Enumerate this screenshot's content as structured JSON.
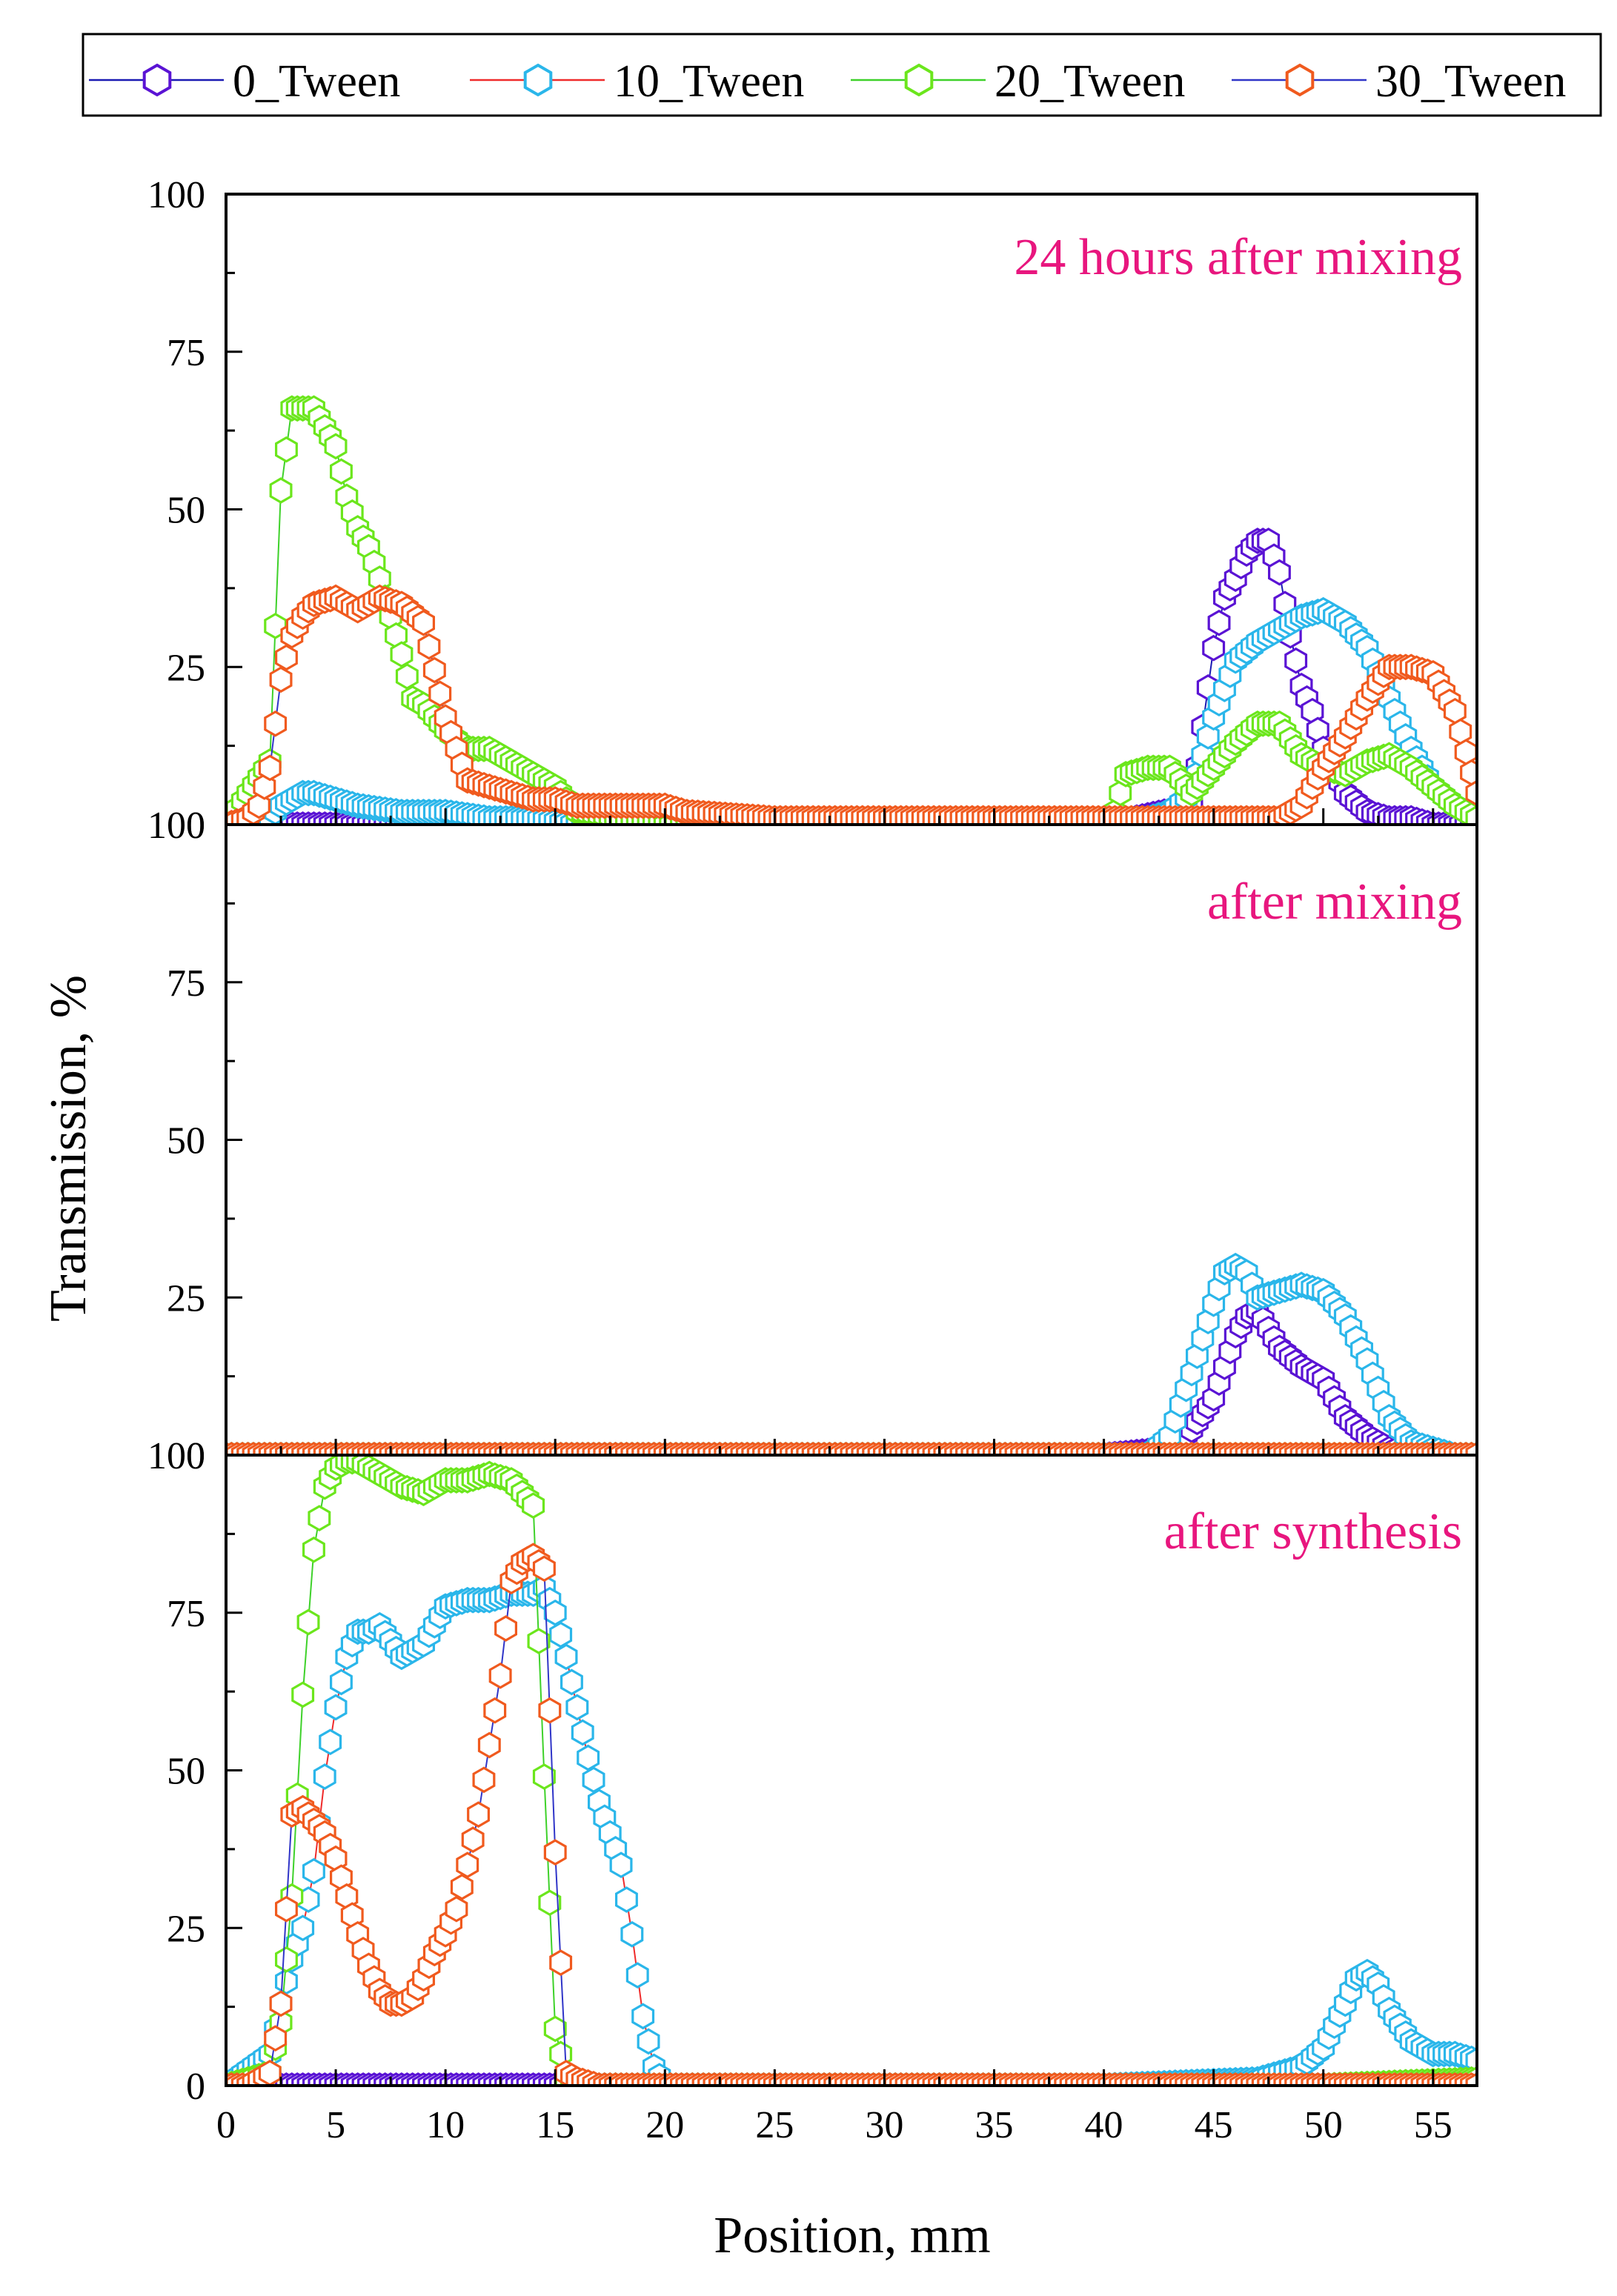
{
  "chart_data": {
    "type": "scatter",
    "xlabel": "Position, mm",
    "ylabel": "Transmission, %",
    "xlim": [
      0,
      57
    ],
    "ylim": [
      0,
      100
    ],
    "x_ticks": [
      "0",
      "5",
      "10",
      "15",
      "20",
      "25",
      "30",
      "35",
      "40",
      "45",
      "50",
      "55"
    ],
    "y_ticks": [
      "0",
      "25",
      "50",
      "75",
      "100"
    ],
    "legend": {
      "placement": "top",
      "entries": [
        "0_Tween",
        "10_Tween",
        "20_Tween",
        "30_Tween"
      ]
    },
    "series_styles": [
      {
        "name": "0_Tween",
        "marker_color": "#5a13d4",
        "line_color": "#1a1ab3"
      },
      {
        "name": "10_Tween",
        "marker_color": "#2ab6ea",
        "line_color": "#ef2b2b"
      },
      {
        "name": "20_Tween",
        "marker_color": "#6be61c",
        "line_color": "#3ed12a"
      },
      {
        "name": "30_Tween",
        "marker_color": "#f05a1e",
        "line_color": "#3035c8"
      }
    ],
    "panels": [
      {
        "title": "24 hours after mixing",
        "series": [
          {
            "name": "0_Tween",
            "x": [
              0,
              1,
              2,
              3,
              4,
              5,
              10,
              20,
              30,
              40,
              44,
              45,
              45.5,
              46,
              46.5,
              47,
              47.5,
              48,
              48.5,
              49,
              49.5,
              50,
              51,
              52,
              53,
              54,
              55,
              56,
              57
            ],
            "y": [
              0,
              0,
              0,
              0,
              0,
              0,
              0,
              0,
              0,
              0,
              3,
              28,
              36,
              39,
              43,
              45,
              45,
              40,
              30,
              22,
              18,
              12,
              5,
              2,
              1,
              1,
              0,
              0,
              0
            ]
          },
          {
            "name": "10_Tween",
            "x": [
              0,
              2,
              2.5,
              3,
              3.5,
              4,
              5,
              6,
              8,
              10,
              12,
              14,
              16,
              20,
              30,
              40,
              42,
              43,
              44,
              45,
              46,
              47,
              48,
              49,
              50,
              51,
              52,
              53,
              54,
              55,
              56,
              57
            ],
            "y": [
              0,
              1,
              3,
              4,
              5,
              5,
              4,
              3,
              2,
              2,
              1,
              1,
              0,
              0,
              0,
              0,
              1,
              2,
              5,
              17,
              26,
              29,
              31,
              33,
              34,
              32,
              28,
              20,
              12,
              6,
              3,
              1
            ]
          },
          {
            "name": "20_Tween",
            "x": [
              0,
              2,
              2.5,
              3,
              3.5,
              4,
              4.5,
              5,
              5.5,
              6,
              6.5,
              7,
              7.5,
              8,
              8.5,
              9,
              10,
              11,
              12,
              13,
              14,
              15,
              16,
              18,
              20,
              30,
              40,
              40.5,
              41,
              42,
              43,
              44,
              45,
              46,
              47,
              48,
              49,
              50,
              51,
              52,
              53,
              54,
              55,
              56,
              57
            ],
            "y": [
              0,
              10,
              53,
              66,
              66,
              66,
              63,
              60,
              52,
              47,
              44,
              39,
              33,
              27,
              20,
              19,
              15,
              12,
              12,
              10,
              8,
              6,
              2,
              1,
              0,
              0,
              0,
              2,
              8,
              9,
              9,
              5,
              9,
              13,
              16,
              16,
              11,
              9,
              8,
              10,
              11,
              9,
              6,
              3,
              1
            ]
          },
          {
            "name": "30_Tween",
            "x": [
              0,
              1,
              1.5,
              2,
              2.5,
              3,
              3.5,
              4,
              5,
              6,
              7,
              8,
              9,
              10,
              11,
              12,
              13,
              14,
              15,
              16,
              17,
              18,
              19,
              20,
              21,
              25,
              30,
              40,
              48,
              49,
              50,
              51,
              52,
              53,
              54,
              55,
              56,
              57
            ],
            "y": [
              0,
              1,
              3,
              9,
              23,
              30,
              33,
              35,
              36,
              34,
              36,
              35,
              32,
              17,
              7,
              6,
              5,
              4,
              4,
              3,
              3,
              3,
              3,
              3,
              2,
              1,
              1,
              1,
              1,
              3,
              9,
              14,
              20,
              25,
              25,
              24,
              18,
              5
            ]
          }
        ]
      },
      {
        "title": "after mixing",
        "series": [
          {
            "name": "0_Tween",
            "x": [
              0,
              10,
              20,
              30,
              40,
              43,
              44,
              45,
              45.5,
              46,
              46.5,
              47,
              47.5,
              48,
              49,
              50,
              51,
              52,
              53,
              54,
              57
            ],
            "y": [
              0,
              0,
              0,
              0,
              0,
              1,
              4,
              9,
              14,
              19,
              22,
              23,
              20,
              17,
              14,
              12,
              6,
              3,
              1,
              0,
              0
            ]
          },
          {
            "name": "10_Tween",
            "x": [
              0,
              10,
              20,
              30,
              40,
              42,
              43,
              44,
              45,
              45.5,
              46,
              46.5,
              47,
              48,
              49,
              50,
              51,
              52,
              53,
              54,
              55,
              56,
              57
            ],
            "y": [
              0,
              0,
              0,
              0,
              0,
              0,
              3,
              13,
              24,
              29,
              30,
              29,
              25,
              26,
              27,
              26,
              22,
              15,
              6,
              2,
              1,
              0,
              0
            ]
          },
          {
            "name": "20_Tween",
            "x": [
              0,
              10,
              20,
              30,
              40,
              50,
              57
            ],
            "y": [
              0,
              0,
              0,
              0,
              0,
              0,
              0
            ]
          },
          {
            "name": "30_Tween",
            "x": [
              0,
              10,
              20,
              30,
              40,
              50,
              57
            ],
            "y": [
              0,
              0,
              0,
              0,
              0,
              0,
              0
            ]
          }
        ]
      },
      {
        "title": "after synthesis",
        "series": [
          {
            "name": "0_Tween",
            "x": [
              0,
              2,
              3,
              5,
              10,
              14,
              15,
              20,
              30,
              40,
              57
            ],
            "y": [
              0,
              0,
              0,
              0,
              0,
              0,
              0,
              0,
              0,
              0,
              0
            ]
          },
          {
            "name": "10_Tween",
            "x": [
              0,
              2,
              2.5,
              3,
              3.5,
              4,
              4.5,
              5,
              5.5,
              6,
              6.5,
              7,
              8,
              9,
              10,
              11,
              12,
              13,
              14,
              14.5,
              15,
              15.5,
              16,
              16.5,
              17,
              17.5,
              18,
              18.5,
              19,
              19.5,
              20,
              30,
              40,
              47,
              48,
              49,
              50,
              51,
              51.5,
              52,
              52.5,
              53,
              54,
              55,
              56,
              57
            ],
            "y": [
              0,
              5,
              13,
              20,
              25,
              34,
              49,
              60,
              68,
              72,
              72,
              73,
              68,
              70,
              76,
              77,
              77,
              78,
              78,
              79,
              75,
              68,
              60,
              52,
              45,
              40,
              35,
              24,
              11,
              3,
              0,
              0,
              0,
              1,
              2,
              3,
              6,
              13,
              17,
              18,
              16,
              12,
              7,
              5,
              5,
              4
            ]
          },
          {
            "name": "20_Tween",
            "x": [
              0,
              2,
              2.5,
              3,
              3.5,
              4,
              4.5,
              5,
              5.5,
              6,
              7,
              8,
              9,
              10,
              11,
              12,
              13,
              13.5,
              14,
              14.5,
              15,
              15.5,
              16,
              20,
              30,
              40,
              50,
              57
            ],
            "y": [
              0,
              2,
              10,
              30,
              62,
              85,
              95,
              98,
              99,
              99,
              97,
              95,
              94,
              96,
              96,
              97,
              96,
              94,
              92,
              49,
              9,
              1,
              0,
              0,
              0,
              0,
              0,
              1
            ]
          },
          {
            "name": "30_Tween",
            "x": [
              0,
              1,
              2,
              2.5,
              3,
              3.5,
              4,
              4.5,
              5,
              5.5,
              6,
              6.5,
              7,
              7.5,
              8,
              8.5,
              9,
              9.5,
              10,
              10.5,
              11,
              11.5,
              12,
              12.5,
              13,
              13.5,
              14,
              14.5,
              15,
              15.5,
              16,
              17,
              20,
              30,
              40,
              50,
              57
            ],
            "y": [
              0,
              0,
              2,
              13,
              43,
              44,
              42,
              40,
              36,
              30,
              24,
              19,
              15,
              13,
              13,
              14,
              17,
              21,
              24,
              28,
              35,
              43,
              54,
              65,
              80,
              83,
              84,
              82,
              37,
              2,
              1,
              0,
              0,
              0,
              0,
              0,
              0
            ]
          }
        ]
      }
    ]
  }
}
